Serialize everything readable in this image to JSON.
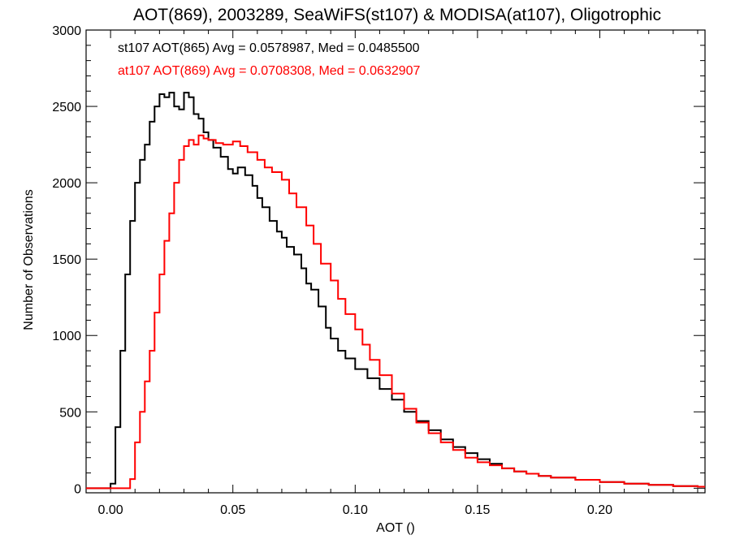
{
  "chart_data": {
    "type": "line",
    "title": "AOT(869), 2003289, SeaWiFS(st107) & MODISA(at107), Oligotrophic",
    "xlabel": "AOT ()",
    "ylabel": "Number of Observations",
    "xlim": [
      -0.01,
      0.243
    ],
    "ylim": [
      -30,
      3000
    ],
    "xticks": [
      0.0,
      0.05,
      0.1,
      0.15,
      0.2
    ],
    "xtick_labels": [
      "0.00",
      "0.05",
      "0.10",
      "0.15",
      "0.20"
    ],
    "yticks": [
      0,
      500,
      1000,
      1500,
      2000,
      2500,
      3000
    ],
    "ytick_labels": [
      "0",
      "500",
      "1000",
      "1500",
      "2000",
      "2500",
      "3000"
    ],
    "grid": false,
    "legend_placement": "top-left",
    "step": "histogram",
    "series": [
      {
        "name": "st107 AOT(865) Avg = 0.0578987, Med = 0.0485500",
        "color": "#000000",
        "x": [
          -0.01,
          -0.005,
          0.0,
          0.002,
          0.004,
          0.006,
          0.008,
          0.01,
          0.012,
          0.014,
          0.016,
          0.018,
          0.02,
          0.022,
          0.024,
          0.026,
          0.028,
          0.03,
          0.032,
          0.034,
          0.036,
          0.038,
          0.04,
          0.042,
          0.045,
          0.048,
          0.05,
          0.052,
          0.055,
          0.058,
          0.06,
          0.062,
          0.065,
          0.068,
          0.07,
          0.072,
          0.075,
          0.078,
          0.08,
          0.082,
          0.085,
          0.088,
          0.09,
          0.093,
          0.096,
          0.1,
          0.105,
          0.11,
          0.115,
          0.12,
          0.125,
          0.13,
          0.135,
          0.14,
          0.145,
          0.15,
          0.155,
          0.16,
          0.165,
          0.17,
          0.175,
          0.18,
          0.19,
          0.2,
          0.21,
          0.22,
          0.23,
          0.24
        ],
        "y": [
          0,
          0,
          30,
          400,
          900,
          1400,
          1750,
          2000,
          2150,
          2250,
          2400,
          2500,
          2580,
          2560,
          2590,
          2500,
          2480,
          2590,
          2560,
          2450,
          2420,
          2330,
          2280,
          2230,
          2170,
          2090,
          2060,
          2100,
          2050,
          1980,
          1900,
          1840,
          1750,
          1680,
          1640,
          1580,
          1530,
          1440,
          1340,
          1300,
          1190,
          1050,
          980,
          900,
          850,
          780,
          720,
          650,
          580,
          500,
          440,
          380,
          320,
          270,
          230,
          190,
          160,
          130,
          110,
          95,
          80,
          70,
          55,
          40,
          30,
          22,
          14,
          10
        ]
      },
      {
        "name": "at107 AOT(869) Avg = 0.0708308, Med = 0.0632907",
        "color": "#ff0000",
        "x": [
          -0.01,
          -0.005,
          0.0,
          0.005,
          0.008,
          0.01,
          0.012,
          0.014,
          0.016,
          0.018,
          0.02,
          0.022,
          0.024,
          0.026,
          0.028,
          0.03,
          0.032,
          0.034,
          0.036,
          0.038,
          0.04,
          0.043,
          0.046,
          0.05,
          0.053,
          0.056,
          0.06,
          0.063,
          0.066,
          0.07,
          0.073,
          0.076,
          0.08,
          0.083,
          0.086,
          0.09,
          0.093,
          0.096,
          0.1,
          0.103,
          0.106,
          0.11,
          0.115,
          0.12,
          0.125,
          0.13,
          0.135,
          0.14,
          0.145,
          0.15,
          0.155,
          0.16,
          0.165,
          0.17,
          0.175,
          0.18,
          0.19,
          0.2,
          0.21,
          0.22,
          0.23,
          0.24
        ],
        "y": [
          0,
          0,
          0,
          0,
          60,
          300,
          500,
          700,
          900,
          1150,
          1400,
          1620,
          1800,
          2000,
          2150,
          2240,
          2280,
          2250,
          2310,
          2290,
          2280,
          2260,
          2250,
          2270,
          2240,
          2200,
          2150,
          2100,
          2070,
          2020,
          1930,
          1840,
          1720,
          1600,
          1470,
          1360,
          1240,
          1140,
          1040,
          940,
          840,
          740,
          620,
          520,
          430,
          360,
          300,
          250,
          200,
          170,
          150,
          130,
          110,
          95,
          80,
          70,
          55,
          40,
          30,
          22,
          14,
          10
        ]
      }
    ]
  }
}
